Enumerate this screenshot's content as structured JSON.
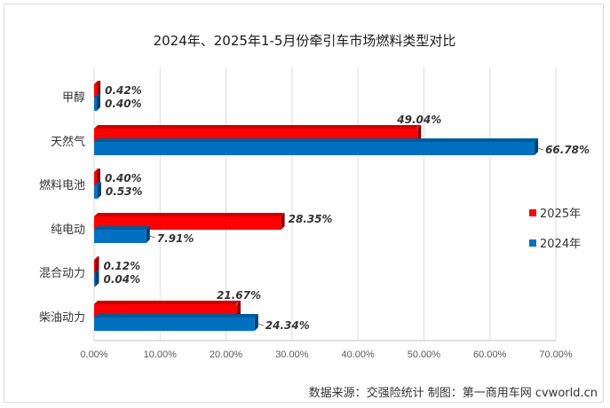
{
  "chart_data": {
    "type": "bar",
    "orientation": "horizontal",
    "title": "2024年、2025年1-5月份牵引车市场燃料类型对比",
    "categories": [
      "甲醇",
      "天然气",
      "燃料电池",
      "纯电动",
      "混合动力",
      "柴油动力"
    ],
    "series": [
      {
        "name": "2025年",
        "color": "#ff0000",
        "values": [
          0.42,
          49.04,
          0.4,
          28.35,
          0.12,
          21.67
        ],
        "labels": [
          "0.42%",
          "49.04%",
          "0.40%",
          "28.35%",
          "0.12%",
          "21.67%"
        ]
      },
      {
        "name": "2024年",
        "color": "#0070c0",
        "values": [
          0.4,
          66.78,
          0.53,
          7.91,
          0.04,
          24.34
        ],
        "labels": [
          "0.40%",
          "66.78%",
          "0.53%",
          "7.91%",
          "0.04%",
          "24.34%"
        ]
      }
    ],
    "xlim": [
      0,
      70
    ],
    "xticks": [
      "0.00%",
      "10.00%",
      "20.00%",
      "30.00%",
      "40.00%",
      "50.00%",
      "60.00%",
      "70.00%"
    ],
    "legend_position": "right",
    "grid": true,
    "style": "3d-bar"
  },
  "footer": {
    "source": "数据来源：交强险统计    制图：第一商用车网 cvworld.cn"
  }
}
